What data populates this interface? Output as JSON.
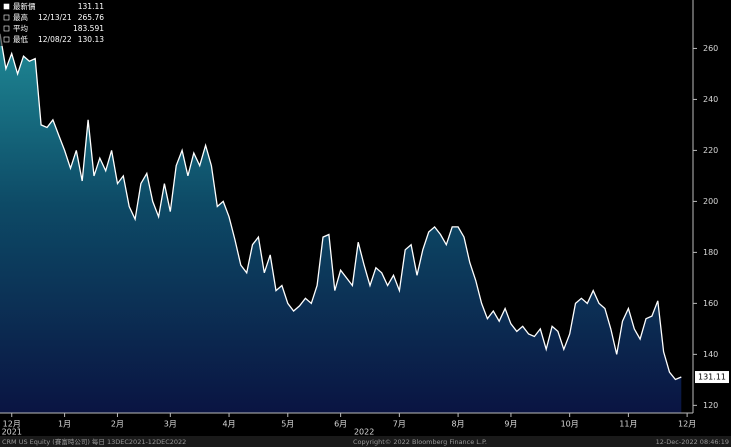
{
  "chart_data": {
    "type": "area",
    "values": [
      265.76,
      252,
      258,
      250,
      257,
      255,
      256,
      230,
      229,
      232,
      226,
      220,
      213,
      220,
      208,
      232,
      210,
      217,
      212,
      220,
      207,
      210,
      198,
      193,
      207,
      211,
      200,
      194,
      207,
      196,
      214,
      220,
      210,
      219,
      214,
      222,
      214,
      198,
      200,
      194,
      185,
      175,
      172,
      183,
      186,
      172,
      179,
      165,
      167,
      160,
      157,
      159,
      162,
      160,
      167,
      186,
      187,
      165,
      173,
      170,
      167,
      184,
      175,
      167,
      174,
      172,
      167,
      171,
      165,
      181,
      183,
      171,
      181,
      188,
      190,
      187,
      183,
      190,
      190,
      186,
      176,
      169,
      160,
      154,
      157,
      153,
      158,
      152,
      149,
      151,
      148,
      147,
      150,
      142,
      151,
      149,
      142,
      148,
      160,
      162,
      160,
      165,
      160,
      158,
      150,
      140,
      153,
      158,
      150,
      146,
      154,
      155,
      161,
      141,
      133,
      130.13,
      131.11
    ],
    "color": "#ffffff",
    "xlim": [
      0,
      118
    ],
    "ylim": [
      117,
      279
    ],
    "yticks": [
      120,
      140,
      160,
      180,
      200,
      220,
      240,
      260
    ],
    "xticks": [
      {
        "value": 2,
        "label": "12月"
      },
      {
        "value": 11,
        "label": "1月"
      },
      {
        "value": 20,
        "label": "2月"
      },
      {
        "value": 29,
        "label": "3月"
      },
      {
        "value": 39,
        "label": "4月"
      },
      {
        "value": 49,
        "label": "5月"
      },
      {
        "value": 58,
        "label": "6月"
      },
      {
        "value": 68,
        "label": "7月"
      },
      {
        "value": 78,
        "label": "8月"
      },
      {
        "value": 87,
        "label": "9月"
      },
      {
        "value": 97,
        "label": "10月"
      },
      {
        "value": 107,
        "label": "11月"
      },
      {
        "value": 117,
        "label": "12月"
      }
    ],
    "year_labels": [
      {
        "value": 2,
        "label": "2021"
      },
      {
        "value": 62,
        "label": "2022"
      }
    ],
    "stats": [
      {
        "label": "最新價",
        "date": null,
        "value": 131.11
      },
      {
        "label": "最高",
        "date": "12/13/21",
        "value": 265.76
      },
      {
        "label": "平均",
        "date": null,
        "value": 183.591
      },
      {
        "label": "最低",
        "date": "12/08/22",
        "value": 130.13
      }
    ]
  },
  "footer": {
    "left": "CRM US Equity (賽富時公司)  每日 13DEC2021-12DEC2022",
    "center": "Copyright© 2022 Bloomberg Finance L.P.",
    "right": "12-Dec-2022 08:46:19"
  }
}
